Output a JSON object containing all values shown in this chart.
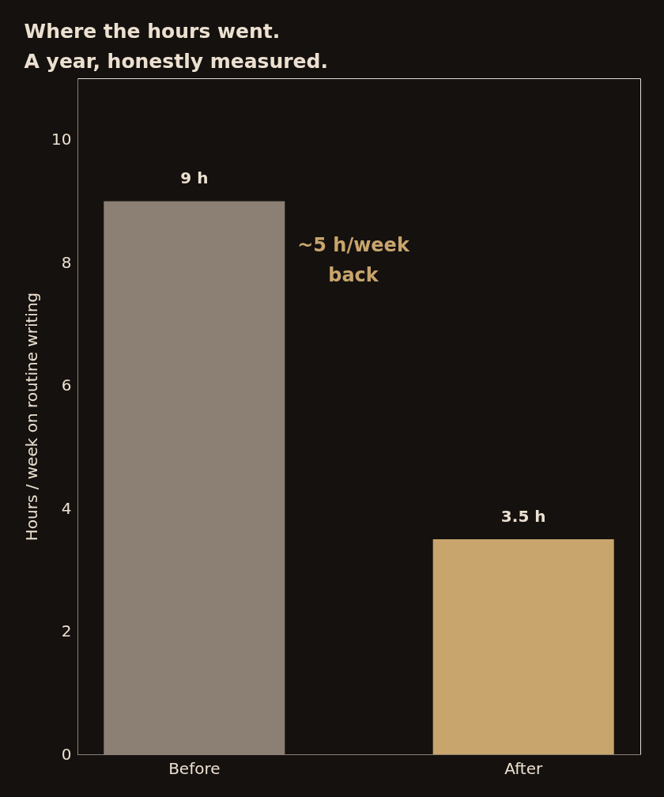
{
  "chart_data": {
    "type": "bar",
    "title": "Where the hours went.\nA year, honestly measured.",
    "ylabel": "Hours / week on routine writing",
    "categories": [
      "Before",
      "After"
    ],
    "values": [
      9,
      3.5
    ],
    "colors": [
      "#8b8073",
      "#c8a56c"
    ],
    "value_labels": [
      "9 h",
      "3.5 h"
    ],
    "annotations": [
      "~5 h/week\nback"
    ],
    "ylim": [
      0,
      11
    ],
    "yticks": [
      0,
      2,
      4,
      6,
      8,
      10
    ],
    "grid": false
  }
}
